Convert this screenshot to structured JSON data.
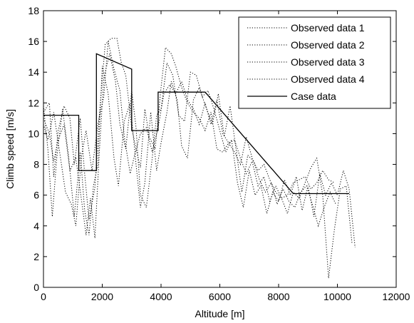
{
  "chart_data": {
    "type": "line",
    "xlabel": "Altitude [m]",
    "ylabel": "Climb speed [m/s]",
    "xlim": [
      0,
      12000
    ],
    "ylim": [
      0,
      18
    ],
    "xticks": [
      0,
      2000,
      4000,
      6000,
      8000,
      10000,
      12000
    ],
    "yticks": [
      0,
      2,
      4,
      6,
      8,
      10,
      12,
      14,
      16,
      18
    ],
    "grid": false,
    "legend_position": "top-right",
    "series": [
      {
        "name": "Observed data 1",
        "style": "dotted",
        "color": "#000000",
        "points": [
          [
            0,
            11.4
          ],
          [
            200,
            12.0
          ],
          [
            350,
            7.2
          ],
          [
            500,
            10.2
          ],
          [
            700,
            11.8
          ],
          [
            900,
            11.0
          ],
          [
            1050,
            8.0
          ],
          [
            1250,
            11.0
          ],
          [
            1400,
            7.4
          ],
          [
            1550,
            4.4
          ],
          [
            1750,
            6.5
          ],
          [
            1900,
            11.2
          ],
          [
            2100,
            15.8
          ],
          [
            2300,
            16.2
          ],
          [
            2500,
            16.2
          ],
          [
            2650,
            14.6
          ],
          [
            2800,
            13.8
          ],
          [
            3000,
            10.4
          ],
          [
            3150,
            9.0
          ],
          [
            3300,
            7.8
          ],
          [
            3450,
            11.6
          ],
          [
            3600,
            9.8
          ],
          [
            3800,
            9.0
          ],
          [
            4000,
            13.0
          ],
          [
            4150,
            15.6
          ],
          [
            4350,
            15.2
          ],
          [
            4500,
            14.4
          ],
          [
            4700,
            13.0
          ],
          [
            4900,
            12.0
          ],
          [
            5100,
            11.4
          ],
          [
            5300,
            11.0
          ],
          [
            5500,
            10.2
          ],
          [
            5700,
            11.4
          ],
          [
            5900,
            9.0
          ],
          [
            6100,
            8.8
          ],
          [
            6300,
            9.4
          ],
          [
            6500,
            8.8
          ],
          [
            6700,
            8.0
          ],
          [
            6900,
            9.8
          ],
          [
            7100,
            8.4
          ],
          [
            7300,
            7.6
          ],
          [
            7500,
            8.0
          ],
          [
            7700,
            7.0
          ],
          [
            7900,
            6.2
          ],
          [
            8100,
            5.8
          ],
          [
            8300,
            6.0
          ],
          [
            8500,
            6.8
          ],
          [
            8700,
            7.0
          ],
          [
            8900,
            7.2
          ],
          [
            9100,
            6.4
          ],
          [
            9300,
            6.8
          ],
          [
            9500,
            7.6
          ],
          [
            9700,
            7.0
          ],
          [
            9900,
            6.8
          ]
        ]
      },
      {
        "name": "Observed data 2",
        "style": "dotted",
        "color": "#000000",
        "points": [
          [
            0,
            11.8
          ],
          [
            150,
            9.0
          ],
          [
            300,
            4.6
          ],
          [
            450,
            8.4
          ],
          [
            650,
            11.6
          ],
          [
            850,
            8.6
          ],
          [
            1050,
            4.6
          ],
          [
            1250,
            8.8
          ],
          [
            1400,
            5.0
          ],
          [
            1550,
            3.4
          ],
          [
            1700,
            6.6
          ],
          [
            1850,
            8.0
          ],
          [
            2000,
            14.4
          ],
          [
            2200,
            12.6
          ],
          [
            2400,
            8.4
          ],
          [
            2550,
            6.6
          ],
          [
            2750,
            10.8
          ],
          [
            2950,
            12.0
          ],
          [
            3150,
            8.0
          ],
          [
            3300,
            5.2
          ],
          [
            3450,
            6.8
          ],
          [
            3650,
            11.4
          ],
          [
            3850,
            7.6
          ],
          [
            4000,
            9.4
          ],
          [
            4200,
            11.4
          ],
          [
            4350,
            13.4
          ],
          [
            4550,
            12.2
          ],
          [
            4700,
            9.2
          ],
          [
            4900,
            8.4
          ],
          [
            5100,
            12.2
          ],
          [
            5300,
            13.0
          ],
          [
            5550,
            11.6
          ],
          [
            5750,
            10.6
          ],
          [
            5950,
            12.6
          ],
          [
            6150,
            9.8
          ],
          [
            6350,
            11.8
          ],
          [
            6550,
            9.0
          ],
          [
            6750,
            6.2
          ],
          [
            6950,
            8.6
          ],
          [
            7150,
            8.2
          ],
          [
            7350,
            7.0
          ],
          [
            7550,
            6.2
          ],
          [
            7750,
            6.8
          ],
          [
            7950,
            5.4
          ],
          [
            8150,
            6.4
          ],
          [
            8350,
            5.6
          ],
          [
            8550,
            5.2
          ],
          [
            8750,
            6.2
          ],
          [
            8950,
            6.6
          ],
          [
            9150,
            5.4
          ],
          [
            9350,
            4.0
          ],
          [
            9550,
            5.2
          ],
          [
            9750,
            6.2
          ],
          [
            9950,
            5.4
          ]
        ]
      },
      {
        "name": "Observed data 3",
        "style": "dotted",
        "color": "#000000",
        "points": [
          [
            0,
            11.0
          ],
          [
            200,
            10.0
          ],
          [
            350,
            8.2
          ],
          [
            500,
            9.6
          ],
          [
            700,
            10.6
          ],
          [
            900,
            7.6
          ],
          [
            1100,
            8.4
          ],
          [
            1300,
            5.6
          ],
          [
            1450,
            3.4
          ],
          [
            1600,
            5.8
          ],
          [
            1750,
            3.2
          ],
          [
            1900,
            8.8
          ],
          [
            2050,
            13.6
          ],
          [
            2250,
            15.2
          ],
          [
            2450,
            13.4
          ],
          [
            2600,
            10.6
          ],
          [
            2800,
            9.0
          ],
          [
            3000,
            12.8
          ],
          [
            3150,
            10.4
          ],
          [
            3300,
            6.0
          ],
          [
            3500,
            5.2
          ],
          [
            3700,
            8.4
          ],
          [
            3850,
            11.2
          ],
          [
            4000,
            11.6
          ],
          [
            4200,
            14.6
          ],
          [
            4400,
            13.8
          ],
          [
            4600,
            11.2
          ],
          [
            4800,
            10.8
          ],
          [
            5000,
            14.0
          ],
          [
            5200,
            13.8
          ],
          [
            5400,
            12.4
          ],
          [
            5600,
            12.8
          ],
          [
            5800,
            11.6
          ],
          [
            6000,
            10.2
          ],
          [
            6200,
            8.8
          ],
          [
            6400,
            9.6
          ],
          [
            6600,
            6.8
          ],
          [
            6800,
            5.2
          ],
          [
            7000,
            7.6
          ],
          [
            7200,
            6.0
          ],
          [
            7400,
            6.6
          ],
          [
            7600,
            4.8
          ],
          [
            7800,
            6.2
          ],
          [
            8000,
            5.6
          ],
          [
            8200,
            7.0
          ],
          [
            8400,
            6.0
          ],
          [
            8600,
            7.2
          ],
          [
            8800,
            5.0
          ],
          [
            9000,
            6.6
          ],
          [
            9200,
            4.6
          ],
          [
            9400,
            7.4
          ],
          [
            9600,
            6.0
          ],
          [
            9800,
            6.8
          ],
          [
            10000,
            6.0
          ],
          [
            10200,
            7.6
          ],
          [
            10400,
            6.4
          ],
          [
            10600,
            2.6
          ]
        ]
      },
      {
        "name": "Observed data 4",
        "style": "dotted",
        "color": "#000000",
        "points": [
          [
            0,
            10.6
          ],
          [
            150,
            9.6
          ],
          [
            350,
            11.4
          ],
          [
            550,
            8.8
          ],
          [
            750,
            6.2
          ],
          [
            950,
            5.4
          ],
          [
            1100,
            4.0
          ],
          [
            1300,
            8.6
          ],
          [
            1450,
            10.2
          ],
          [
            1650,
            7.6
          ],
          [
            1850,
            10.6
          ],
          [
            2050,
            12.4
          ],
          [
            2200,
            16.0
          ],
          [
            2400,
            14.2
          ],
          [
            2600,
            12.8
          ],
          [
            2750,
            9.8
          ],
          [
            2950,
            7.4
          ],
          [
            3100,
            8.6
          ],
          [
            3300,
            10.0
          ],
          [
            3500,
            10.4
          ],
          [
            3700,
            8.8
          ],
          [
            3900,
            10.4
          ],
          [
            4100,
            12.6
          ],
          [
            4300,
            13.2
          ],
          [
            4500,
            12.6
          ],
          [
            4700,
            13.4
          ],
          [
            4900,
            12.2
          ],
          [
            5100,
            11.6
          ],
          [
            5300,
            10.6
          ],
          [
            5500,
            12.0
          ],
          [
            5700,
            10.6
          ],
          [
            5900,
            12.2
          ],
          [
            6100,
            10.0
          ],
          [
            6300,
            9.4
          ],
          [
            6500,
            9.6
          ],
          [
            6700,
            8.4
          ],
          [
            6900,
            7.4
          ],
          [
            7100,
            8.2
          ],
          [
            7300,
            6.6
          ],
          [
            7500,
            7.2
          ],
          [
            7700,
            5.6
          ],
          [
            7900,
            6.6
          ],
          [
            8100,
            5.8
          ],
          [
            8300,
            4.8
          ],
          [
            8500,
            6.2
          ],
          [
            8700,
            5.8
          ],
          [
            8900,
            6.8
          ],
          [
            9100,
            7.8
          ],
          [
            9300,
            8.4
          ],
          [
            9500,
            6.0
          ],
          [
            9700,
            0.6
          ],
          [
            9900,
            3.8
          ],
          [
            10100,
            6.4
          ],
          [
            10300,
            6.6
          ],
          [
            10500,
            2.8
          ]
        ]
      },
      {
        "name": "Case data",
        "style": "solid",
        "color": "#000000",
        "points": [
          [
            0,
            11.2
          ],
          [
            1200,
            11.2
          ],
          [
            1200,
            7.6
          ],
          [
            1800,
            7.6
          ],
          [
            1800,
            15.2
          ],
          [
            3000,
            14.2
          ],
          [
            3000,
            10.2
          ],
          [
            3900,
            10.2
          ],
          [
            3900,
            12.7
          ],
          [
            5500,
            12.7
          ],
          [
            8500,
            6.1
          ],
          [
            10400,
            6.1
          ]
        ]
      }
    ]
  }
}
